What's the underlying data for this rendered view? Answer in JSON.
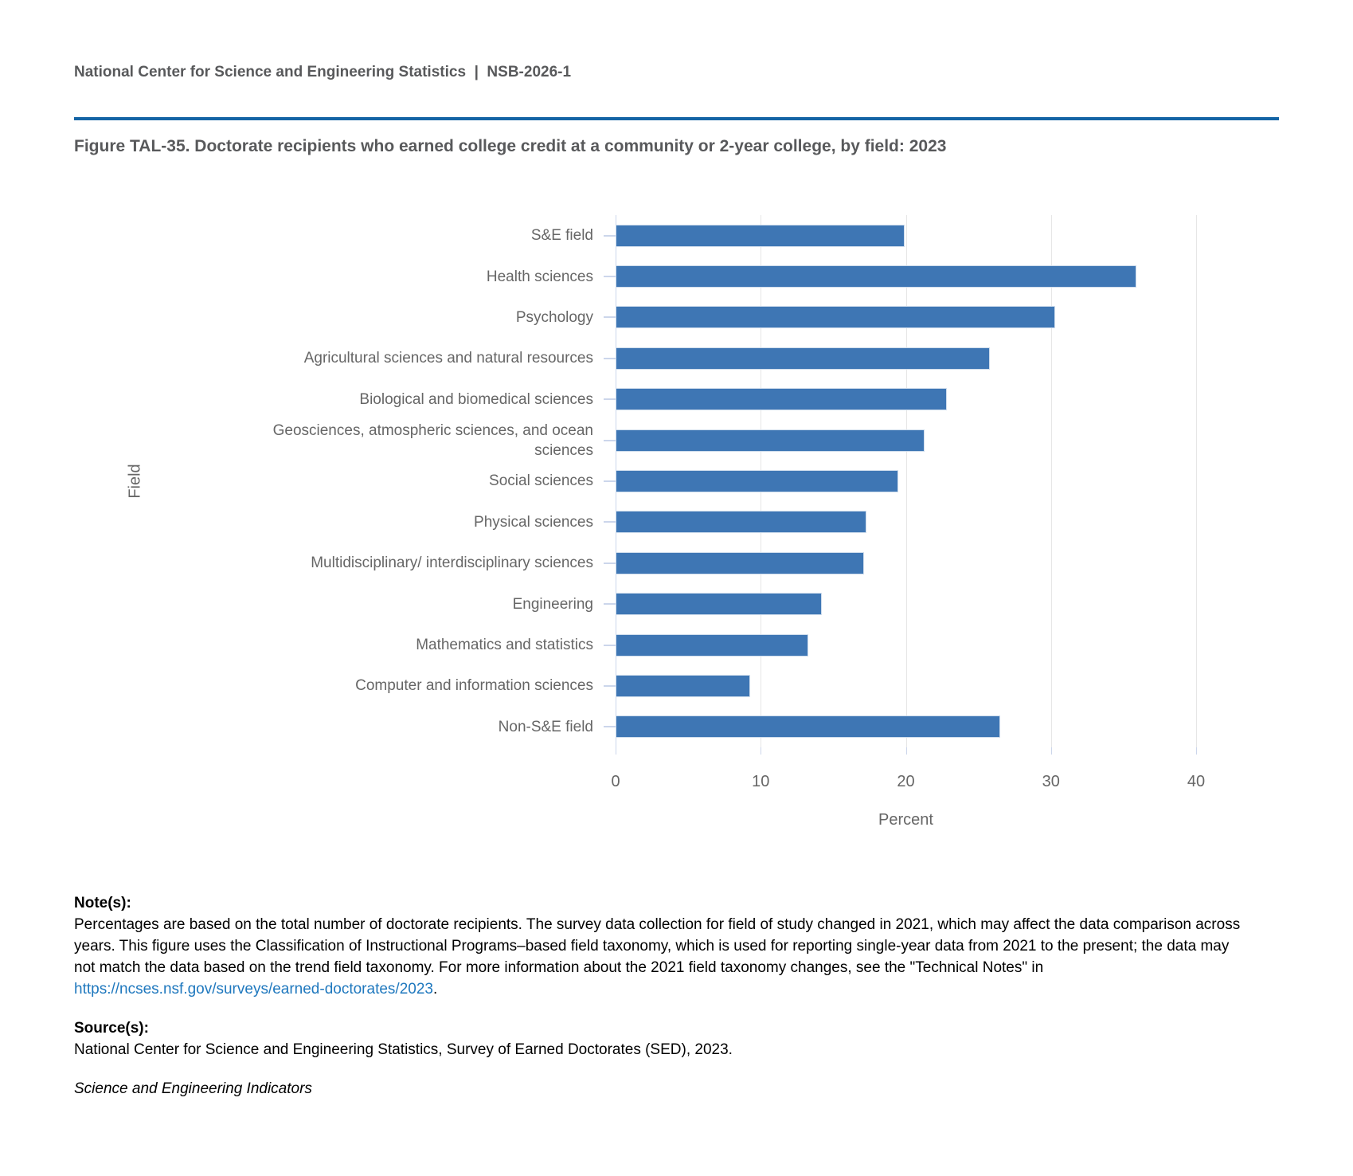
{
  "header": {
    "text": "National Center for Science and Engineering Statistics  |  NSB-2026-1"
  },
  "title": {
    "text": "Figure TAL-35. Doctorate recipients who earned college credit at a community or 2-year college, by field: 2023"
  },
  "chart_data": {
    "type": "bar",
    "orientation": "horizontal",
    "title": "",
    "categories": [
      "S&E field",
      "Health sciences",
      "Psychology",
      "Agricultural sciences and natural resources",
      "Biological and biomedical sciences",
      "Geosciences, atmospheric sciences, and ocean sciences",
      "Social sciences",
      "Physical sciences",
      "Multidisciplinary/ interdisciplinary sciences",
      "Engineering",
      "Mathematics and statistics",
      "Computer and information sciences",
      "Non-S&E field"
    ],
    "values": [
      19.9,
      35.9,
      30.3,
      25.8,
      22.8,
      21.3,
      19.5,
      17.3,
      17.1,
      14.2,
      13.3,
      9.3,
      26.5
    ],
    "xlabel": "Percent",
    "ylabel": "Field",
    "xlim": [
      0,
      40
    ],
    "xticks": [
      0,
      10,
      20,
      30,
      40
    ],
    "grid": true,
    "legend": "none"
  },
  "notes": {
    "label": "Note(s):",
    "text_before_link": "Percentages are based on the total number of doctorate recipients. The survey data collection for field of study changed in 2021, which may affect the data comparison across years. This figure uses the Classification of Instructional Programs–based field taxonomy, which is used for reporting single-year data from 2021 to the present; the data may not match the data based on the trend field taxonomy. For more information about the 2021 field taxonomy changes, see the \"Technical Notes\" in ",
    "link_text": "https://ncses.nsf.gov/surveys/earned-doctorates/2023",
    "text_after_link": "."
  },
  "source": {
    "label": "Source(s):",
    "text": "National Center for Science and Engineering Statistics, Survey of Earned Doctorates (SED), 2023."
  },
  "footer": {
    "text": "Science and Engineering Indicators"
  },
  "colors": {
    "bar": "#3E76B4",
    "rule": "#1464A5",
    "link": "#1F78BE",
    "gridline": "#E6E6E6",
    "axis": "#CCD6EB",
    "axis_text": "#666666",
    "heading_text": "#58595B"
  }
}
